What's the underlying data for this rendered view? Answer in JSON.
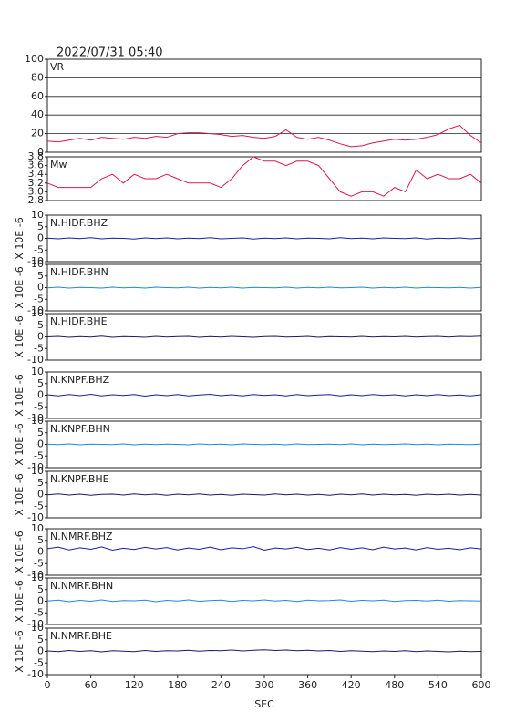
{
  "chart_data": {
    "type": "line",
    "title": "2022/07/31 05:40",
    "x_label": "SEC",
    "xlim": [
      0,
      600
    ],
    "xticks": [
      0,
      60,
      120,
      180,
      240,
      300,
      360,
      420,
      480,
      540,
      600
    ],
    "x": [
      0,
      15,
      30,
      45,
      60,
      75,
      90,
      105,
      120,
      135,
      150,
      165,
      180,
      195,
      210,
      225,
      240,
      255,
      270,
      285,
      300,
      315,
      330,
      345,
      360,
      375,
      390,
      405,
      420,
      435,
      450,
      465,
      480,
      495,
      510,
      525,
      540,
      555,
      570,
      585,
      600
    ],
    "panels": [
      {
        "name": "VR",
        "color": "#d81b4a",
        "ylim": [
          0,
          100
        ],
        "yticks": [
          0,
          20,
          40,
          60,
          80,
          100
        ],
        "grid": true,
        "values": [
          12,
          11,
          13,
          15,
          13,
          16,
          15,
          14,
          16,
          15,
          17,
          16,
          20,
          21,
          21,
          20,
          19,
          17,
          18,
          16,
          15,
          17,
          24,
          16,
          14,
          16,
          13,
          9,
          6,
          7,
          10,
          12,
          14,
          13,
          14,
          16,
          19,
          25,
          29,
          18,
          10
        ]
      },
      {
        "name": "Mw",
        "color": "#d81b4a",
        "ylim": [
          2.8,
          3.8
        ],
        "yticks": [
          2.8,
          {
            "value": 3,
            "label": "3.0"
          },
          3.2,
          3.4,
          3.6,
          3.8
        ],
        "grid": false,
        "values": [
          3.2,
          3.1,
          3.1,
          3.1,
          3.1,
          3.3,
          3.4,
          3.2,
          3.4,
          3.3,
          3.3,
          3.4,
          3.3,
          3.2,
          3.2,
          3.2,
          3.1,
          3.3,
          3.6,
          3.8,
          3.7,
          3.7,
          3.6,
          3.7,
          3.7,
          3.6,
          3.3,
          3.0,
          2.9,
          3.0,
          3.0,
          2.9,
          3.1,
          3.0,
          3.5,
          3.3,
          3.4,
          3.3,
          3.3,
          3.4,
          3.2
        ]
      },
      {
        "name": "N.HIDF.BHZ",
        "ylabel": "X 10E -6",
        "color": "#1c1ca8",
        "ylim": [
          -10,
          10
        ],
        "yticks": [
          -10,
          -5,
          0,
          5,
          10
        ],
        "grid": false,
        "values": [
          0.1,
          -0.2,
          0.2,
          -0.1,
          0.3,
          -0.2,
          0.1,
          0,
          -0.3,
          0.2,
          -0.1,
          0.2,
          -0.2,
          0.1,
          -0.1,
          0.3,
          -0.2,
          0,
          0.2,
          -0.3,
          0.1,
          -0.1,
          0.2,
          -0.2,
          0.1,
          0,
          -0.2,
          0.3,
          -0.1,
          0.1,
          -0.2,
          0.2,
          0,
          -0.1,
          0.2,
          -0.3,
          0.1,
          -0.1,
          0.2,
          -0.2,
          0.1
        ]
      },
      {
        "name": "N.HIDF.BHN",
        "ylabel": "X 10E -6",
        "color": "#1f8ad9",
        "ylim": [
          -10,
          10
        ],
        "yticks": [
          -10,
          -5,
          0,
          5,
          10
        ],
        "grid": false,
        "values": [
          -0.1,
          0.2,
          -0.2,
          0.1,
          0,
          -0.2,
          0.2,
          -0.1,
          0.1,
          -0.2,
          0.2,
          0,
          -0.1,
          0.2,
          -0.2,
          0.1,
          -0.1,
          0.2,
          -0.2,
          0.1,
          0,
          -0.1,
          0.2,
          -0.2,
          0.1,
          -0.1,
          0.2,
          -0.1,
          0,
          0.2,
          -0.2,
          0.1,
          -0.1,
          0.2,
          -0.2,
          0.1,
          0,
          -0.1,
          0.1,
          -0.2,
          0.1
        ]
      },
      {
        "name": "N.HIDF.BHE",
        "ylabel": "X 10E -6",
        "color": "#1a1a66",
        "ylim": [
          -10,
          10
        ],
        "yticks": [
          -10,
          -5,
          0,
          5,
          10
        ],
        "grid": false,
        "values": [
          0,
          0.2,
          -0.2,
          0.1,
          -0.1,
          0.3,
          -0.2,
          0.1,
          0,
          -0.2,
          0.2,
          -0.1,
          0.1,
          0.2,
          -0.2,
          0.1,
          -0.1,
          0.2,
          0,
          -0.2,
          0.1,
          0.2,
          -0.1,
          0,
          0.2,
          -0.2,
          0.1,
          0,
          -0.1,
          0.2,
          -0.1,
          0.1,
          0,
          0.2,
          -0.1,
          0.1,
          0.2,
          -0.1,
          0.2,
          0.1,
          0.3
        ]
      },
      {
        "name": "N.KNPF.BHZ",
        "ylabel": "X 10E -6",
        "color": "#1c1ca8",
        "ylim": [
          -10,
          10
        ],
        "yticks": [
          -10,
          -5,
          0,
          5,
          10
        ],
        "grid": false,
        "values": [
          0.2,
          -0.3,
          0.3,
          -0.2,
          0.4,
          -0.3,
          0.2,
          -0.1,
          0.3,
          -0.4,
          0.2,
          -0.2,
          0.3,
          -0.3,
          0.1,
          0.4,
          -0.2,
          0.2,
          -0.3,
          0.3,
          -0.1,
          0.2,
          -0.3,
          0.3,
          -0.2,
          0.1,
          0.3,
          -0.3,
          0.2,
          -0.2,
          0.3,
          -0.1,
          0.2,
          -0.3,
          0.2,
          -0.2,
          0.3,
          -0.2,
          0.1,
          -0.3,
          0.2
        ]
      },
      {
        "name": "N.KNPF.BHN",
        "ylabel": "X 10E -6",
        "color": "#1f8ad9",
        "ylim": [
          -10,
          10
        ],
        "yticks": [
          -10,
          -5,
          0,
          5,
          10
        ],
        "grid": false,
        "values": [
          0.1,
          -0.1,
          0.2,
          -0.2,
          0.1,
          0,
          -0.1,
          0.2,
          -0.2,
          0.1,
          -0.1,
          0.1,
          0,
          -0.2,
          0.2,
          -0.1,
          0.1,
          -0.2,
          0.2,
          0,
          -0.1,
          0.1,
          -0.2,
          0.2,
          -0.1,
          0,
          0.1,
          -0.1,
          0.2,
          -0.2,
          0.1,
          -0.1,
          0,
          0.2,
          -0.1,
          0.1,
          -0.2,
          0.1,
          0,
          -0.1,
          0.1
        ]
      },
      {
        "name": "N.KNPF.BHE",
        "ylabel": "X 10E -6",
        "color": "#1a1a66",
        "ylim": [
          -10,
          10
        ],
        "yticks": [
          -10,
          -5,
          0,
          5,
          10
        ],
        "grid": false,
        "values": [
          -0.1,
          0.3,
          -0.2,
          0.2,
          -0.3,
          0.1,
          0.2,
          -0.2,
          0.3,
          -0.1,
          0.2,
          -0.3,
          0.2,
          -0.1,
          0.3,
          -0.2,
          0.1,
          -0.3,
          0.2,
          0,
          -0.2,
          0.3,
          -0.1,
          0.2,
          -0.2,
          0.1,
          -0.3,
          0.2,
          -0.1,
          0.3,
          -0.2,
          0.2,
          -0.1,
          0.1,
          -0.3,
          0.2,
          -0.1,
          0.2,
          -0.2,
          0.1,
          -0.2
        ]
      },
      {
        "name": "N.NMRF.BHZ",
        "ylabel": "X 10E -6",
        "color": "#1c1ca8",
        "ylim": [
          -10,
          10
        ],
        "yticks": [
          -10,
          -5,
          0,
          5,
          10
        ],
        "grid": false,
        "values": [
          1.4,
          2.1,
          0.9,
          1.8,
          1.2,
          2.2,
          0.8,
          1.6,
          1.1,
          2.0,
          1.3,
          1.9,
          0.9,
          1.7,
          1.2,
          2.1,
          1.0,
          1.8,
          1.4,
          2.3,
          0.8,
          1.7,
          1.3,
          2.0,
          1.1,
          1.6,
          0.9,
          1.9,
          1.2,
          1.8,
          1.0,
          2.1,
          1.3,
          1.7,
          0.9,
          1.9,
          1.2,
          1.6,
          1.0,
          1.8,
          1.3
        ]
      },
      {
        "name": "N.NMRF.BHN",
        "ylabel": "X 10E -6",
        "color": "#1f8ad9",
        "ylim": [
          -10,
          10
        ],
        "yticks": [
          -10,
          -5,
          0,
          5,
          10
        ],
        "grid": false,
        "values": [
          0.1,
          0.5,
          -0.2,
          0.4,
          0,
          0.6,
          -0.1,
          0.3,
          0.2,
          0.5,
          -0.2,
          0.4,
          0.1,
          0.6,
          0,
          0.3,
          0.5,
          -0.1,
          0.4,
          0.2,
          0.6,
          0.1,
          0.4,
          -0.1,
          0.5,
          0.2,
          0.3,
          0.6,
          0,
          0.4,
          0.2,
          0.5,
          -0.1,
          0.3,
          0.4,
          0.1,
          0.5,
          0,
          0.3,
          0.2,
          0.1
        ]
      },
      {
        "name": "N.NMRF.BHE",
        "ylabel": "X 10E -6",
        "color": "#1a1a66",
        "ylim": [
          -10,
          10
        ],
        "yticks": [
          -10,
          -5,
          0,
          5,
          10
        ],
        "grid": false,
        "values": [
          0.2,
          -0.1,
          0.4,
          0,
          0.3,
          -0.2,
          0.3,
          0.1,
          -0.1,
          0.4,
          0,
          0.3,
          0.2,
          0.5,
          0.1,
          0.4,
          0.3,
          0.6,
          0.2,
          0.5,
          0.7,
          0.4,
          0.6,
          0.3,
          0.5,
          0.2,
          0.4,
          0,
          0.3,
          0.1,
          -0.1,
          0.2,
          0,
          0.3,
          -0.1,
          0.2,
          0,
          -0.2,
          0.1,
          -0.1,
          0
        ]
      }
    ]
  }
}
